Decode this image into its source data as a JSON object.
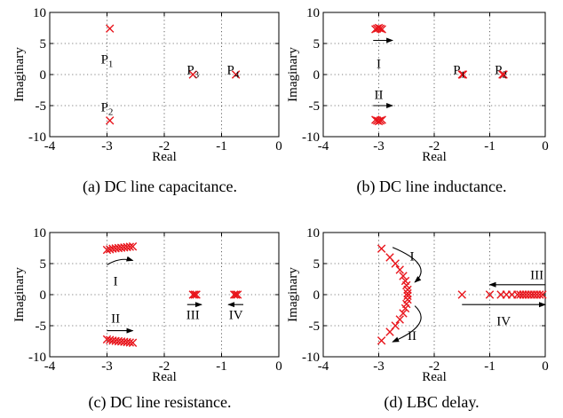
{
  "chart_data": [
    {
      "type": "scatter",
      "caption": "(a) DC line capacitance.",
      "xlabel": "Real",
      "ylabel": "Imaginary",
      "xlim": [
        -4,
        0
      ],
      "ylim": [
        -10,
        10
      ],
      "xticks": [
        -4,
        -3,
        -2,
        -1,
        0
      ],
      "yticks": [
        -10,
        -5,
        0,
        5,
        10
      ],
      "grid": true,
      "points": [
        [
          -2.95,
          7.4
        ],
        [
          -2.95,
          -7.4
        ],
        [
          -1.5,
          0
        ],
        [
          -0.75,
          0
        ]
      ],
      "labels": [
        {
          "text": "P",
          "sub": "1",
          "x": -3.0,
          "y": 2.5
        },
        {
          "text": "P",
          "sub": "2",
          "x": -3.0,
          "y": -5.2
        },
        {
          "text": "P",
          "sub": "3",
          "x": -1.5,
          "y": 0.8
        },
        {
          "text": "P",
          "sub": "4",
          "x": -0.8,
          "y": 0.8
        }
      ],
      "arrows": []
    },
    {
      "type": "scatter",
      "caption": "(b) DC line inductance.",
      "xlabel": "Real",
      "ylabel": "Imaginary",
      "xlim": [
        -4,
        0
      ],
      "ylim": [
        -10,
        10
      ],
      "xticks": [
        -4,
        -3,
        -2,
        -1,
        0
      ],
      "yticks": [
        -10,
        -5,
        0,
        5,
        10
      ],
      "grid": true,
      "points": [
        [
          -3.06,
          7.3
        ],
        [
          -3.03,
          7.4
        ],
        [
          -3.0,
          7.5
        ],
        [
          -2.97,
          7.4
        ],
        [
          -2.94,
          7.3
        ],
        [
          -3.06,
          -7.3
        ],
        [
          -3.03,
          -7.4
        ],
        [
          -3.0,
          -7.5
        ],
        [
          -2.97,
          -7.4
        ],
        [
          -2.94,
          -7.3
        ],
        [
          -1.5,
          0
        ],
        [
          -1.48,
          0
        ],
        [
          -0.77,
          0
        ],
        [
          -0.75,
          0
        ]
      ],
      "labels": [
        {
          "text": "I",
          "sub": "",
          "x": -3.0,
          "y": 1.8
        },
        {
          "text": "II",
          "sub": "",
          "x": -3.0,
          "y": -3.2
        },
        {
          "text": "P",
          "sub": "1",
          "x": -1.55,
          "y": 0.8
        },
        {
          "text": "P",
          "sub": "2",
          "x": -0.8,
          "y": 0.8
        }
      ],
      "arrows": [
        {
          "from": [
            -3.1,
            5.5
          ],
          "to": [
            -2.75,
            5.5
          ]
        },
        {
          "from": [
            -3.1,
            -5.0
          ],
          "to": [
            -2.75,
            -5.0
          ]
        }
      ]
    },
    {
      "type": "scatter",
      "caption": "(c) DC line resistance.",
      "xlabel": "Real",
      "ylabel": "Imaginary",
      "xlim": [
        -4,
        0
      ],
      "ylim": [
        -10,
        10
      ],
      "xticks": [
        -4,
        -3,
        -2,
        -1,
        0
      ],
      "yticks": [
        -10,
        -5,
        0,
        5,
        10
      ],
      "grid": true,
      "points": [
        [
          -3.0,
          7.2
        ],
        [
          -2.95,
          7.3
        ],
        [
          -2.9,
          7.4
        ],
        [
          -2.85,
          7.45
        ],
        [
          -2.8,
          7.5
        ],
        [
          -2.75,
          7.55
        ],
        [
          -2.7,
          7.6
        ],
        [
          -2.65,
          7.65
        ],
        [
          -2.6,
          7.7
        ],
        [
          -2.55,
          7.75
        ],
        [
          -3.0,
          -7.2
        ],
        [
          -2.95,
          -7.3
        ],
        [
          -2.9,
          -7.4
        ],
        [
          -2.85,
          -7.45
        ],
        [
          -2.8,
          -7.5
        ],
        [
          -2.75,
          -7.55
        ],
        [
          -2.7,
          -7.6
        ],
        [
          -2.65,
          -7.65
        ],
        [
          -2.6,
          -7.7
        ],
        [
          -2.55,
          -7.75
        ],
        [
          -1.5,
          0
        ],
        [
          -1.47,
          0
        ],
        [
          -1.44,
          0
        ],
        [
          -0.78,
          0
        ],
        [
          -0.75,
          0
        ],
        [
          -0.72,
          0
        ]
      ],
      "labels": [
        {
          "text": "I",
          "sub": "",
          "x": -2.85,
          "y": 2.2
        },
        {
          "text": "II",
          "sub": "",
          "x": -2.85,
          "y": -3.8
        },
        {
          "text": "III",
          "sub": "",
          "x": -1.5,
          "y": -3.2
        },
        {
          "text": "IV",
          "sub": "",
          "x": -0.75,
          "y": -3.2
        }
      ],
      "arrows": [
        {
          "from": [
            -3.0,
            4.8
          ],
          "to": [
            -2.55,
            5.5
          ]
        },
        {
          "from": [
            -3.0,
            -5.8
          ],
          "to": [
            -2.55,
            -5.8
          ]
        },
        {
          "from": [
            -1.6,
            -1.6
          ],
          "to": [
            -1.35,
            -1.6
          ]
        },
        {
          "from": [
            -0.62,
            -1.6
          ],
          "to": [
            -0.88,
            -1.6
          ]
        }
      ]
    },
    {
      "type": "scatter",
      "caption": "(d) LBC delay.",
      "xlabel": "Real",
      "ylabel": "Imaginary",
      "xlim": [
        -4,
        0
      ],
      "ylim": [
        -10,
        10
      ],
      "xticks": [
        -4,
        -3,
        -2,
        -1,
        0
      ],
      "yticks": [
        -10,
        -5,
        0,
        5,
        10
      ],
      "grid": true,
      "points": [
        [
          -2.95,
          7.4
        ],
        [
          -2.8,
          6.0
        ],
        [
          -2.7,
          5.0
        ],
        [
          -2.62,
          4.0
        ],
        [
          -2.56,
          3.0
        ],
        [
          -2.52,
          2.2
        ],
        [
          -2.5,
          1.5
        ],
        [
          -2.48,
          0.8
        ],
        [
          -2.48,
          0.2
        ],
        [
          -2.48,
          -0.2
        ],
        [
          -2.48,
          -0.8
        ],
        [
          -2.5,
          -1.5
        ],
        [
          -2.52,
          -2.2
        ],
        [
          -2.56,
          -3.0
        ],
        [
          -2.62,
          -4.0
        ],
        [
          -2.7,
          -5.0
        ],
        [
          -2.8,
          -6.0
        ],
        [
          -2.95,
          -7.4
        ],
        [
          -1.5,
          0
        ],
        [
          -1.0,
          0
        ],
        [
          -0.8,
          0
        ],
        [
          -0.7,
          0
        ],
        [
          -0.6,
          0
        ],
        [
          -0.5,
          0
        ],
        [
          -0.45,
          0
        ],
        [
          -0.4,
          0
        ],
        [
          -0.35,
          0
        ],
        [
          -0.3,
          0
        ],
        [
          -0.25,
          0
        ],
        [
          -0.2,
          0
        ],
        [
          -0.15,
          0
        ],
        [
          -0.1,
          0
        ],
        [
          -0.05,
          0
        ]
      ],
      "labels": [
        {
          "text": "I",
          "sub": "",
          "x": -2.4,
          "y": 6.2
        },
        {
          "text": "II",
          "sub": "",
          "x": -2.4,
          "y": -6.6
        },
        {
          "text": "III",
          "sub": "",
          "x": -0.15,
          "y": 3.2
        },
        {
          "text": "IV",
          "sub": "",
          "x": -0.75,
          "y": -4.2
        }
      ],
      "arrows": [
        {
          "from": [
            -2.75,
            7.6
          ],
          "to": [
            -2.35,
            2.0
          ],
          "curve": true
        },
        {
          "from": [
            -2.35,
            -1.8
          ],
          "to": [
            -2.75,
            -7.6
          ],
          "curve": true
        },
        {
          "from": [
            0.0,
            1.6
          ],
          "to": [
            -1.0,
            1.6
          ]
        },
        {
          "from": [
            -1.5,
            -1.6
          ],
          "to": [
            0.0,
            -1.6
          ]
        }
      ]
    }
  ]
}
